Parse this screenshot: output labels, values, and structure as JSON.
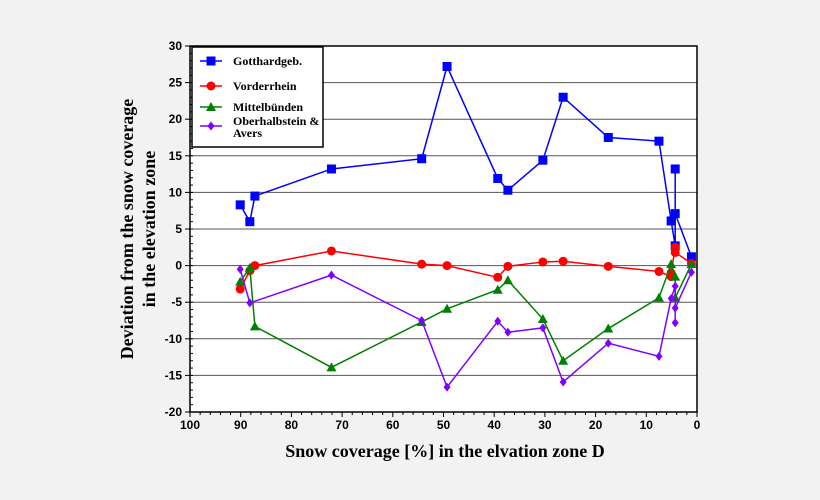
{
  "chart_data": {
    "type": "line",
    "xlabel": "Snow coverage [%] in the elvation zone D",
    "ylabel_lines": [
      "Deviation from the snow coverage",
      "in the elevation zone"
    ],
    "xlim": [
      100,
      0
    ],
    "ylim": [
      -20,
      30
    ],
    "xticks": [
      100,
      90,
      80,
      70,
      60,
      50,
      40,
      30,
      20,
      10,
      0
    ],
    "yticks": [
      -20,
      -15,
      -10,
      -5,
      0,
      5,
      10,
      15,
      20,
      25,
      30
    ],
    "grid": "horizontal",
    "legend_position": "top-left",
    "series": [
      {
        "name": "Gotthardgeb.",
        "color": "#0000ff",
        "marker": "square",
        "points": [
          [
            90.1,
            8.3
          ],
          [
            88.2,
            6
          ],
          [
            87.2,
            9.5
          ],
          [
            72.1,
            13.2
          ],
          [
            54.3,
            14.6
          ],
          [
            49.3,
            27.2
          ],
          [
            39.3,
            11.9
          ],
          [
            37.3,
            10.3
          ],
          [
            30.4,
            14.4
          ],
          [
            26.4,
            23
          ],
          [
            17.5,
            17.5
          ],
          [
            7.5,
            17
          ],
          [
            5.1,
            6.1
          ],
          [
            4.3,
            2.7
          ],
          [
            4.3,
            13.2
          ],
          [
            4.3,
            7.1
          ],
          [
            1.1,
            1.2
          ]
        ]
      },
      {
        "name": "Vorderrhein",
        "color": "#ff0000",
        "marker": "circle",
        "points": [
          [
            90.1,
            -3.2
          ],
          [
            88.2,
            -0.7
          ],
          [
            87.2,
            0
          ],
          [
            72.1,
            2
          ],
          [
            54.3,
            0.2
          ],
          [
            49.3,
            0
          ],
          [
            39.3,
            -1.6
          ],
          [
            37.3,
            -0.1
          ],
          [
            30.4,
            0.5
          ],
          [
            26.4,
            0.6
          ],
          [
            17.5,
            -0.1
          ],
          [
            7.5,
            -0.8
          ],
          [
            5.1,
            -1.5
          ],
          [
            5.1,
            -1
          ],
          [
            4.3,
            2.5
          ],
          [
            4.3,
            1.8
          ],
          [
            1.1,
            0.3
          ]
        ]
      },
      {
        "name": "Mittelbünden",
        "color": "#008000",
        "marker": "triangle",
        "points": [
          [
            90.1,
            -2.2
          ],
          [
            88.2,
            -0.3
          ],
          [
            87.2,
            -8.3
          ],
          [
            72.1,
            -13.9
          ],
          [
            54.3,
            -7.7
          ],
          [
            49.3,
            -5.9
          ],
          [
            39.3,
            -3.3
          ],
          [
            37.3,
            -2
          ],
          [
            30.4,
            -7.3
          ],
          [
            26.4,
            -13
          ],
          [
            17.5,
            -8.6
          ],
          [
            7.5,
            -4.4
          ],
          [
            5.1,
            0.2
          ],
          [
            4.3,
            -1.5
          ],
          [
            4.3,
            -4.4
          ],
          [
            1.1,
            0.2
          ]
        ]
      },
      {
        "name_lines": [
          "Oberhalbstein &",
          "Avers"
        ],
        "name": "Oberhalbstein & Avers",
        "color": "#7f00ff",
        "marker": "diamond",
        "points": [
          [
            90.1,
            -0.5
          ],
          [
            88.2,
            -5.1
          ],
          [
            72.1,
            -1.3
          ],
          [
            54.3,
            -7.5
          ],
          [
            49.3,
            -16.6
          ],
          [
            39.3,
            -7.6
          ],
          [
            37.3,
            -9.1
          ],
          [
            30.4,
            -8.5
          ],
          [
            26.4,
            -15.9
          ],
          [
            17.5,
            -10.6
          ],
          [
            7.5,
            -12.4
          ],
          [
            5.1,
            -4.5
          ],
          [
            4.3,
            -2.8
          ],
          [
            4.3,
            -7.8
          ],
          [
            4.3,
            -5.8
          ],
          [
            1.1,
            -0.9
          ]
        ]
      }
    ]
  }
}
